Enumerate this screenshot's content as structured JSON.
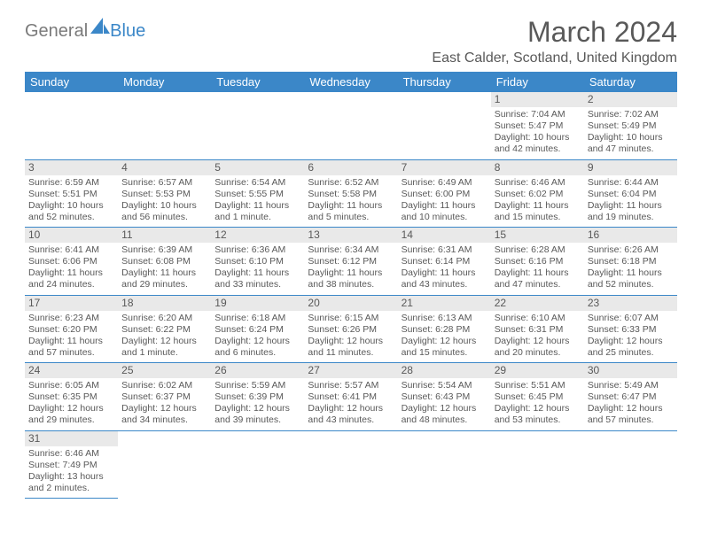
{
  "logo": {
    "general": "General",
    "blue": "Blue"
  },
  "title": "March 2024",
  "location": "East Calder, Scotland, United Kingdom",
  "colors": {
    "header_bg": "#3b87c8",
    "header_text": "#ffffff",
    "daynum_bg": "#e9e9e9",
    "text": "#595959",
    "border": "#3b87c8",
    "background": "#ffffff"
  },
  "fonts": {
    "title_size": 32,
    "location_size": 16,
    "header_size": 13,
    "cell_size": 10.5
  },
  "headers": [
    "Sunday",
    "Monday",
    "Tuesday",
    "Wednesday",
    "Thursday",
    "Friday",
    "Saturday"
  ],
  "weeks": [
    [
      null,
      null,
      null,
      null,
      null,
      {
        "day": "1",
        "sunrise": "Sunrise: 7:04 AM",
        "sunset": "Sunset: 5:47 PM",
        "daylight1": "Daylight: 10 hours",
        "daylight2": "and 42 minutes."
      },
      {
        "day": "2",
        "sunrise": "Sunrise: 7:02 AM",
        "sunset": "Sunset: 5:49 PM",
        "daylight1": "Daylight: 10 hours",
        "daylight2": "and 47 minutes."
      }
    ],
    [
      {
        "day": "3",
        "sunrise": "Sunrise: 6:59 AM",
        "sunset": "Sunset: 5:51 PM",
        "daylight1": "Daylight: 10 hours",
        "daylight2": "and 52 minutes."
      },
      {
        "day": "4",
        "sunrise": "Sunrise: 6:57 AM",
        "sunset": "Sunset: 5:53 PM",
        "daylight1": "Daylight: 10 hours",
        "daylight2": "and 56 minutes."
      },
      {
        "day": "5",
        "sunrise": "Sunrise: 6:54 AM",
        "sunset": "Sunset: 5:55 PM",
        "daylight1": "Daylight: 11 hours",
        "daylight2": "and 1 minute."
      },
      {
        "day": "6",
        "sunrise": "Sunrise: 6:52 AM",
        "sunset": "Sunset: 5:58 PM",
        "daylight1": "Daylight: 11 hours",
        "daylight2": "and 5 minutes."
      },
      {
        "day": "7",
        "sunrise": "Sunrise: 6:49 AM",
        "sunset": "Sunset: 6:00 PM",
        "daylight1": "Daylight: 11 hours",
        "daylight2": "and 10 minutes."
      },
      {
        "day": "8",
        "sunrise": "Sunrise: 6:46 AM",
        "sunset": "Sunset: 6:02 PM",
        "daylight1": "Daylight: 11 hours",
        "daylight2": "and 15 minutes."
      },
      {
        "day": "9",
        "sunrise": "Sunrise: 6:44 AM",
        "sunset": "Sunset: 6:04 PM",
        "daylight1": "Daylight: 11 hours",
        "daylight2": "and 19 minutes."
      }
    ],
    [
      {
        "day": "10",
        "sunrise": "Sunrise: 6:41 AM",
        "sunset": "Sunset: 6:06 PM",
        "daylight1": "Daylight: 11 hours",
        "daylight2": "and 24 minutes."
      },
      {
        "day": "11",
        "sunrise": "Sunrise: 6:39 AM",
        "sunset": "Sunset: 6:08 PM",
        "daylight1": "Daylight: 11 hours",
        "daylight2": "and 29 minutes."
      },
      {
        "day": "12",
        "sunrise": "Sunrise: 6:36 AM",
        "sunset": "Sunset: 6:10 PM",
        "daylight1": "Daylight: 11 hours",
        "daylight2": "and 33 minutes."
      },
      {
        "day": "13",
        "sunrise": "Sunrise: 6:34 AM",
        "sunset": "Sunset: 6:12 PM",
        "daylight1": "Daylight: 11 hours",
        "daylight2": "and 38 minutes."
      },
      {
        "day": "14",
        "sunrise": "Sunrise: 6:31 AM",
        "sunset": "Sunset: 6:14 PM",
        "daylight1": "Daylight: 11 hours",
        "daylight2": "and 43 minutes."
      },
      {
        "day": "15",
        "sunrise": "Sunrise: 6:28 AM",
        "sunset": "Sunset: 6:16 PM",
        "daylight1": "Daylight: 11 hours",
        "daylight2": "and 47 minutes."
      },
      {
        "day": "16",
        "sunrise": "Sunrise: 6:26 AM",
        "sunset": "Sunset: 6:18 PM",
        "daylight1": "Daylight: 11 hours",
        "daylight2": "and 52 minutes."
      }
    ],
    [
      {
        "day": "17",
        "sunrise": "Sunrise: 6:23 AM",
        "sunset": "Sunset: 6:20 PM",
        "daylight1": "Daylight: 11 hours",
        "daylight2": "and 57 minutes."
      },
      {
        "day": "18",
        "sunrise": "Sunrise: 6:20 AM",
        "sunset": "Sunset: 6:22 PM",
        "daylight1": "Daylight: 12 hours",
        "daylight2": "and 1 minute."
      },
      {
        "day": "19",
        "sunrise": "Sunrise: 6:18 AM",
        "sunset": "Sunset: 6:24 PM",
        "daylight1": "Daylight: 12 hours",
        "daylight2": "and 6 minutes."
      },
      {
        "day": "20",
        "sunrise": "Sunrise: 6:15 AM",
        "sunset": "Sunset: 6:26 PM",
        "daylight1": "Daylight: 12 hours",
        "daylight2": "and 11 minutes."
      },
      {
        "day": "21",
        "sunrise": "Sunrise: 6:13 AM",
        "sunset": "Sunset: 6:28 PM",
        "daylight1": "Daylight: 12 hours",
        "daylight2": "and 15 minutes."
      },
      {
        "day": "22",
        "sunrise": "Sunrise: 6:10 AM",
        "sunset": "Sunset: 6:31 PM",
        "daylight1": "Daylight: 12 hours",
        "daylight2": "and 20 minutes."
      },
      {
        "day": "23",
        "sunrise": "Sunrise: 6:07 AM",
        "sunset": "Sunset: 6:33 PM",
        "daylight1": "Daylight: 12 hours",
        "daylight2": "and 25 minutes."
      }
    ],
    [
      {
        "day": "24",
        "sunrise": "Sunrise: 6:05 AM",
        "sunset": "Sunset: 6:35 PM",
        "daylight1": "Daylight: 12 hours",
        "daylight2": "and 29 minutes."
      },
      {
        "day": "25",
        "sunrise": "Sunrise: 6:02 AM",
        "sunset": "Sunset: 6:37 PM",
        "daylight1": "Daylight: 12 hours",
        "daylight2": "and 34 minutes."
      },
      {
        "day": "26",
        "sunrise": "Sunrise: 5:59 AM",
        "sunset": "Sunset: 6:39 PM",
        "daylight1": "Daylight: 12 hours",
        "daylight2": "and 39 minutes."
      },
      {
        "day": "27",
        "sunrise": "Sunrise: 5:57 AM",
        "sunset": "Sunset: 6:41 PM",
        "daylight1": "Daylight: 12 hours",
        "daylight2": "and 43 minutes."
      },
      {
        "day": "28",
        "sunrise": "Sunrise: 5:54 AM",
        "sunset": "Sunset: 6:43 PM",
        "daylight1": "Daylight: 12 hours",
        "daylight2": "and 48 minutes."
      },
      {
        "day": "29",
        "sunrise": "Sunrise: 5:51 AM",
        "sunset": "Sunset: 6:45 PM",
        "daylight1": "Daylight: 12 hours",
        "daylight2": "and 53 minutes."
      },
      {
        "day": "30",
        "sunrise": "Sunrise: 5:49 AM",
        "sunset": "Sunset: 6:47 PM",
        "daylight1": "Daylight: 12 hours",
        "daylight2": "and 57 minutes."
      }
    ],
    [
      {
        "day": "31",
        "sunrise": "Sunrise: 6:46 AM",
        "sunset": "Sunset: 7:49 PM",
        "daylight1": "Daylight: 13 hours",
        "daylight2": "and 2 minutes."
      },
      null,
      null,
      null,
      null,
      null,
      null
    ]
  ]
}
